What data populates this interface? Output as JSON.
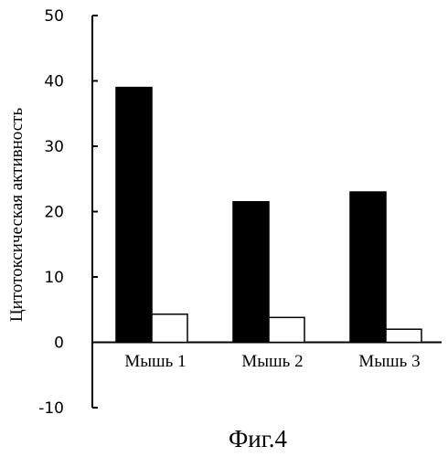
{
  "chart_data": {
    "type": "bar",
    "categories": [
      "Мышь 1",
      "Мышь 2",
      "Мышь 3"
    ],
    "series": [
      {
        "values": [
          39,
          21.5,
          23
        ],
        "color": "#000000"
      },
      {
        "values": [
          4.3,
          3.8,
          2.0
        ],
        "color": "#ffffff"
      }
    ],
    "ylabel": "Цитотоксическая активность",
    "xlabel": "",
    "ylim": [
      -10,
      50
    ],
    "yticks": [
      -10,
      0,
      10,
      20,
      30,
      40,
      50
    ],
    "grid": false,
    "caption": "Фиг.4"
  }
}
